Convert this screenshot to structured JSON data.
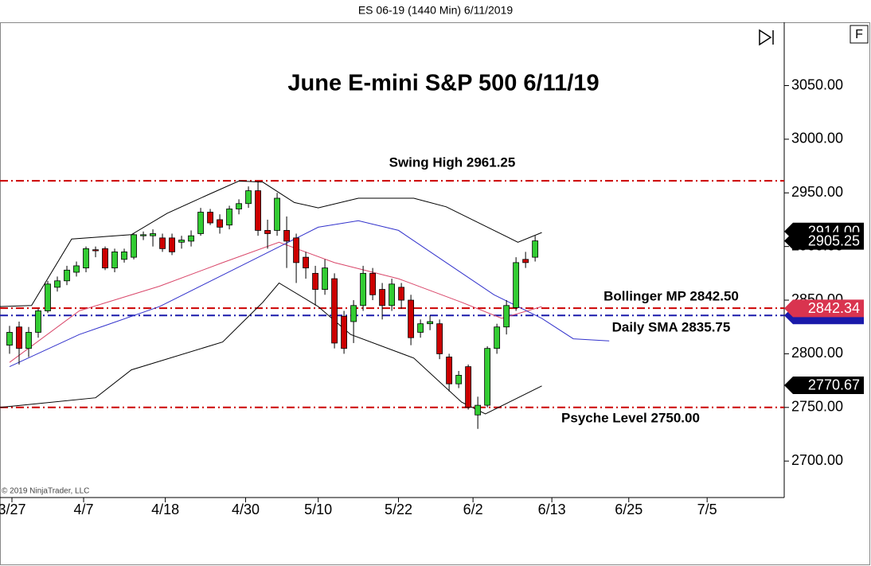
{
  "chart_data": {
    "type": "candlestick",
    "header": "ES 06-19 (1440 Min)  6/11/2019",
    "title": "June E-mini S&P 500 6/11/19",
    "copyright": "© 2019 NinjaTrader, LLC",
    "button": "F",
    "up_color": "#33cc33",
    "down_color": "#cc0000",
    "open": [
      2808,
      2825,
      2805,
      2820,
      2840,
      2862,
      2868,
      2876,
      2880,
      2897,
      2898,
      2880,
      2888,
      2890,
      2910,
      2910,
      2908,
      2908,
      2904,
      2905,
      2912,
      2932,
      2925,
      2920,
      2935,
      2940,
      2952,
      2915,
      2915,
      2915,
      2908,
      2890,
      2875,
      2860,
      2870,
      2835,
      2830,
      2845,
      2875,
      2860,
      2845,
      2862,
      2850,
      2820,
      2828,
      2828,
      2797,
      2772,
      2788,
      2743,
      2752,
      2805,
      2825,
      2843,
      2888,
      2890
    ],
    "high": [
      2826,
      2830,
      2825,
      2842,
      2868,
      2872,
      2882,
      2886,
      2900,
      2900,
      2900,
      2898,
      2898,
      2912,
      2914,
      2916,
      2912,
      2912,
      2910,
      2915,
      2936,
      2935,
      2930,
      2938,
      2944,
      2956,
      2960,
      2925,
      2950,
      2928,
      2912,
      2895,
      2882,
      2888,
      2875,
      2840,
      2850,
      2882,
      2880,
      2866,
      2870,
      2866,
      2855,
      2832,
      2836,
      2832,
      2800,
      2784,
      2790,
      2760,
      2807,
      2828,
      2850,
      2890,
      2895,
      2910
    ],
    "low": [
      2800,
      2790,
      2797,
      2815,
      2838,
      2858,
      2864,
      2872,
      2876,
      2890,
      2878,
      2876,
      2885,
      2888,
      2906,
      2900,
      2895,
      2892,
      2898,
      2900,
      2910,
      2920,
      2912,
      2916,
      2930,
      2936,
      2910,
      2898,
      2910,
      2880,
      2866,
      2870,
      2845,
      2855,
      2805,
      2800,
      2810,
      2840,
      2850,
      2832,
      2840,
      2842,
      2808,
      2815,
      2822,
      2795,
      2765,
      2768,
      2748,
      2730,
      2750,
      2800,
      2818,
      2840,
      2880,
      2886
    ],
    "close": [
      2820,
      2805,
      2820,
      2840,
      2865,
      2868,
      2878,
      2882,
      2898,
      2896,
      2880,
      2895,
      2895,
      2911,
      2911,
      2912,
      2898,
      2895,
      2906,
      2910,
      2932,
      2922,
      2918,
      2935,
      2940,
      2952,
      2915,
      2912,
      2945,
      2905,
      2885,
      2880,
      2860,
      2880,
      2810,
      2805,
      2845,
      2875,
      2855,
      2845,
      2865,
      2850,
      2815,
      2828,
      2830,
      2800,
      2772,
      2780,
      2750,
      2752,
      2805,
      2825,
      2845,
      2885,
      2885,
      2905.25
    ],
    "lines": [
      {
        "color": "#000000",
        "x": [
          -1,
          2.3,
          6.5,
          12.75,
          16.5,
          20.7,
          24,
          26.5,
          29.8,
          32.3,
          36.5,
          42.3,
          45.7,
          50.7,
          53.2,
          55.7
        ],
        "values": [
          2844,
          2845,
          2907,
          2911,
          2931,
          2948,
          2961,
          2960,
          2941,
          2936,
          2945,
          2945,
          2937,
          2915,
          2904,
          2913
        ]
      },
      {
        "color": "#000000",
        "x": [
          -1,
          9,
          12.75,
          22.3,
          26.5,
          28.2,
          32.3,
          35.7,
          42.3,
          47.3,
          49.8,
          52.3,
          55.7
        ],
        "values": [
          2750,
          2759,
          2785,
          2811,
          2848,
          2866,
          2844,
          2818,
          2796,
          2755,
          2744,
          2755,
          2770
        ]
      },
      {
        "color": "#d9476a",
        "x": [
          0,
          7.3,
          15.7,
          22.3,
          28.2,
          34,
          40.7,
          47.3,
          51.5,
          55.7
        ],
        "values": [
          2792,
          2840,
          2863,
          2885,
          2904,
          2885,
          2870,
          2848,
          2833,
          2844
        ]
      },
      {
        "color": "#3333cc",
        "x": [
          0,
          7.3,
          15.7,
          24,
          32.3,
          36.5,
          40.7,
          45.7,
          50.7,
          55.7,
          59,
          62.75
        ],
        "values": [
          2788,
          2818,
          2844,
          2881,
          2918,
          2924,
          2915,
          2885,
          2855,
          2833,
          2814,
          2812
        ]
      }
    ],
    "levels": [
      {
        "value": 2961.25,
        "label": "Swing High 2961.25",
        "color": "#cc0000"
      },
      {
        "value": 2842.5,
        "label": "Bollinger MP 2842.50",
        "color": "#cc0000"
      },
      {
        "value": 2835.75,
        "label": "Daily SMA 2835.75",
        "color": "#1a1aaa"
      },
      {
        "value": 2750.0,
        "label": "Psyche Level 2750.00",
        "color": "#cc0000"
      }
    ],
    "badges": {
      "values": [
        2914.0,
        2905.25,
        2835.75,
        2842.34,
        2770.67
      ],
      "value_labels": [
        "2914.00",
        "2905.25",
        "",
        "2842.34",
        "2770.67"
      ],
      "colors": [
        "#000000",
        "#000000",
        "#1a1aaa",
        "#d9344f",
        "#000000"
      ]
    },
    "ylim": [
      2666,
      3109
    ],
    "yticks": [
      {
        "value": 2700,
        "label": "2700.00"
      },
      {
        "value": 2750,
        "label": "2750.00"
      },
      {
        "value": 2800,
        "label": "2800.00"
      },
      {
        "value": 2850,
        "label": "2850.00"
      },
      {
        "value": 2900,
        "label": "2900.00"
      },
      {
        "value": 2950,
        "label": "2950.00"
      },
      {
        "value": 3000,
        "label": "3000.00"
      },
      {
        "value": 3050,
        "label": "3050.00"
      }
    ],
    "xlim": [
      -1,
      80.9
    ],
    "xticks": [
      {
        "value": 0.25,
        "label": "3/27"
      },
      {
        "value": 7.75,
        "label": "4/7"
      },
      {
        "value": 16.3,
        "label": "4/18"
      },
      {
        "value": 24.7,
        "label": "4/30"
      },
      {
        "value": 32.3,
        "label": "5/10"
      },
      {
        "value": 40.7,
        "label": "5/22"
      },
      {
        "value": 48.5,
        "label": "6/2"
      },
      {
        "value": 56.75,
        "label": "6/13"
      },
      {
        "value": 64.8,
        "label": "6/25"
      },
      {
        "value": 73,
        "label": "7/5"
      }
    ]
  }
}
